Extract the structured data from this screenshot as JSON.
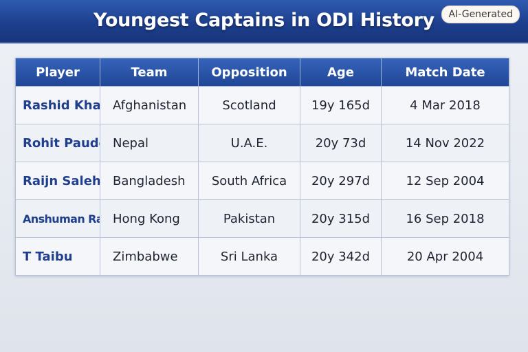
{
  "header": {
    "title": "Youngest Captains in ODI History",
    "badge": "AI-Generated"
  },
  "table": {
    "columns": [
      "Player",
      "Team",
      "Opposition",
      "Age",
      "Match Date"
    ],
    "rows": [
      {
        "player": "Rashid Khan",
        "team": "Afghanistan",
        "opposition": "Scotland",
        "age": "19y 165d",
        "date": "4 Mar 2018"
      },
      {
        "player": "Rohit Paudel",
        "team": "Nepal",
        "opposition": "U.A.E.",
        "age": "20y 73d",
        "date": "14 Nov 2022"
      },
      {
        "player": "Raijn Saleh",
        "team": "Bangladesh",
        "opposition": "South Africa",
        "age": "20y 297d",
        "date": "12 Sep 2004"
      },
      {
        "player": "Anshuman Rath",
        "team": "Hong Kong",
        "opposition": "Pakistan",
        "age": "20y 315d",
        "date": "16 Sep 2018"
      },
      {
        "player": "T Taibu",
        "team": "Zimbabwe",
        "opposition": "Sri Lanka",
        "age": "20y 342d",
        "date": "20 Apr 2004"
      }
    ]
  },
  "colors": {
    "header_blue": "#1f4596",
    "player_text": "#1f3f8e",
    "cell_bg": "#f4f6fa"
  }
}
